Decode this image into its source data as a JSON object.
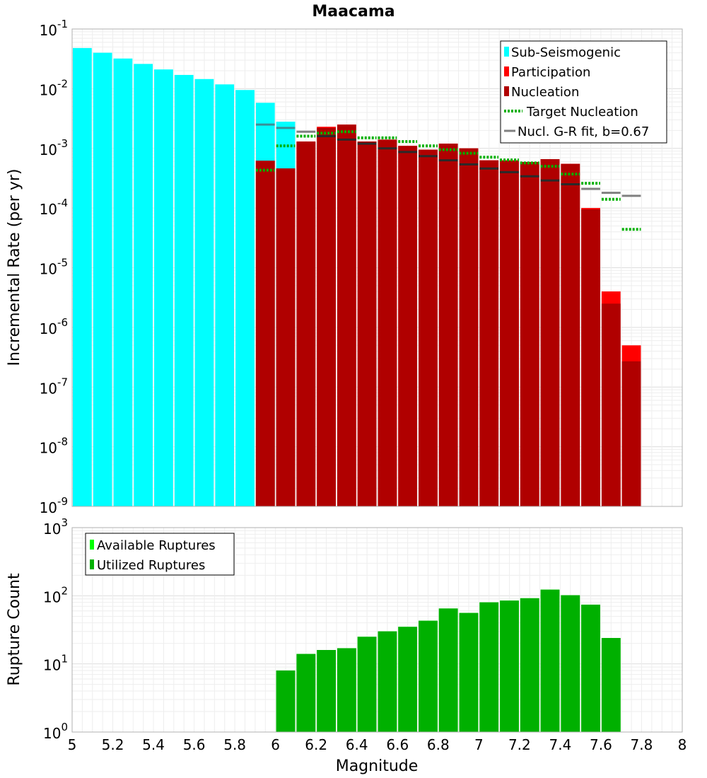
{
  "colors": {
    "sub_seismogenic": "#00ffff",
    "participation": "#ff0000",
    "nucleation": "#b00000",
    "target_nucleation": "#00b000",
    "gr_fit": "#808080",
    "available_ruptures": "#00ff00",
    "utilized_ruptures": "#00b000"
  },
  "chart_data": [
    {
      "type": "bar",
      "title": "Maacama",
      "ylabel": "Incremental Rate (per yr)",
      "xlabel": "",
      "xlim": [
        5,
        8
      ],
      "ylim_exp": [
        -9,
        -1
      ],
      "yscale": "log",
      "grid": true,
      "legend_position": "top-right",
      "legend": [
        "Sub-Seismogenic",
        "Participation",
        "Nucleation",
        "Target Nucleation",
        "Nucl. G-R fit, b=0.67"
      ],
      "bin_centers": [
        5.05,
        5.15,
        5.25,
        5.35,
        5.45,
        5.55,
        5.65,
        5.75,
        5.85,
        5.95,
        6.05,
        6.15,
        6.25,
        6.35,
        6.45,
        6.55,
        6.65,
        6.75,
        6.85,
        6.95,
        7.05,
        7.15,
        7.25,
        7.35,
        7.45,
        7.55,
        7.65,
        7.75
      ],
      "series": [
        {
          "name": "Sub-Seismogenic",
          "values": [
            0.048,
            0.04,
            0.032,
            0.026,
            0.021,
            0.017,
            0.0145,
            0.0118,
            0.0095,
            0.0058,
            0.0028,
            null,
            null,
            null,
            null,
            null,
            null,
            null,
            null,
            null,
            null,
            null,
            null,
            null,
            null,
            null,
            null,
            null
          ]
        },
        {
          "name": "Participation",
          "values": [
            null,
            null,
            null,
            null,
            null,
            null,
            null,
            null,
            null,
            0.00062,
            0.00046,
            0.0013,
            0.0023,
            0.0025,
            0.0013,
            0.0014,
            0.0011,
            0.00095,
            0.0012,
            0.001,
            0.00063,
            0.00063,
            0.00059,
            0.00066,
            0.00055,
            0.0001,
            4e-06,
            5e-07
          ]
        },
        {
          "name": "Nucleation",
          "values": [
            null,
            null,
            null,
            null,
            null,
            null,
            null,
            null,
            null,
            0.00062,
            0.00046,
            0.0013,
            0.0022,
            0.0025,
            0.0013,
            0.0014,
            0.0011,
            0.00095,
            0.0012,
            0.001,
            0.00063,
            0.00063,
            0.00059,
            0.00066,
            0.00055,
            9.5e-05,
            2.5e-06,
            2.7e-07
          ]
        },
        {
          "name": "Target Nucleation",
          "values": [
            null,
            null,
            null,
            null,
            null,
            null,
            null,
            null,
            null,
            0.00043,
            0.0011,
            0.0016,
            0.0018,
            0.0019,
            0.0015,
            0.0015,
            0.0013,
            0.0011,
            0.00095,
            0.00083,
            0.00071,
            0.00064,
            0.00057,
            0.0005,
            0.00037,
            0.00026,
            0.00014,
            4.4e-05
          ]
        },
        {
          "name": "Nucl. G-R fit, b=0.67",
          "values": [
            null,
            null,
            null,
            null,
            null,
            null,
            null,
            null,
            null,
            0.0025,
            0.0022,
            0.0019,
            0.0016,
            0.0014,
            0.0012,
            0.001,
            0.00087,
            0.00074,
            0.00063,
            0.00054,
            0.00046,
            0.0004,
            0.00034,
            0.00029,
            0.00025,
            0.00021,
            0.00018,
            0.00016
          ]
        }
      ]
    },
    {
      "type": "bar",
      "title": "",
      "ylabel": "Rupture Count",
      "xlabel": "Magnitude",
      "xlim": [
        5,
        8
      ],
      "ylim_exp": [
        0,
        3
      ],
      "yscale": "log",
      "grid": true,
      "legend_position": "top-left",
      "legend": [
        "Available Ruptures",
        "Utilized Ruptures"
      ],
      "bin_centers": [
        6.05,
        6.15,
        6.25,
        6.35,
        6.45,
        6.55,
        6.65,
        6.75,
        6.85,
        6.95,
        7.05,
        7.15,
        7.25,
        7.35,
        7.45,
        7.55,
        7.65
      ],
      "series": [
        {
          "name": "Available Ruptures",
          "values": [
            8,
            14,
            16,
            17,
            25,
            30,
            35,
            43,
            65,
            56,
            80,
            85,
            92,
            123,
            102,
            74,
            24
          ]
        },
        {
          "name": "Utilized Ruptures",
          "values": [
            8,
            14,
            16,
            17,
            25,
            30,
            35,
            43,
            65,
            56,
            80,
            85,
            92,
            123,
            102,
            74,
            24
          ]
        }
      ]
    }
  ],
  "x_ticks": [
    "5",
    "5.2",
    "5.4",
    "5.6",
    "5.8",
    "6",
    "6.2",
    "6.4",
    "6.6",
    "6.8",
    "7",
    "7.2",
    "7.4",
    "7.6",
    "7.8",
    "8"
  ],
  "top_y_ticks": [
    {
      "base": "10",
      "exp": "-1"
    },
    {
      "base": "10",
      "exp": "-2"
    },
    {
      "base": "10",
      "exp": "-3"
    },
    {
      "base": "10",
      "exp": "-4"
    },
    {
      "base": "10",
      "exp": "-5"
    },
    {
      "base": "10",
      "exp": "-6"
    },
    {
      "base": "10",
      "exp": "-7"
    },
    {
      "base": "10",
      "exp": "-8"
    },
    {
      "base": "10",
      "exp": "-9"
    }
  ],
  "bottom_y_ticks": [
    {
      "base": "10",
      "exp": "3"
    },
    {
      "base": "10",
      "exp": "2"
    },
    {
      "base": "10",
      "exp": "1"
    },
    {
      "base": "10",
      "exp": "0"
    }
  ]
}
